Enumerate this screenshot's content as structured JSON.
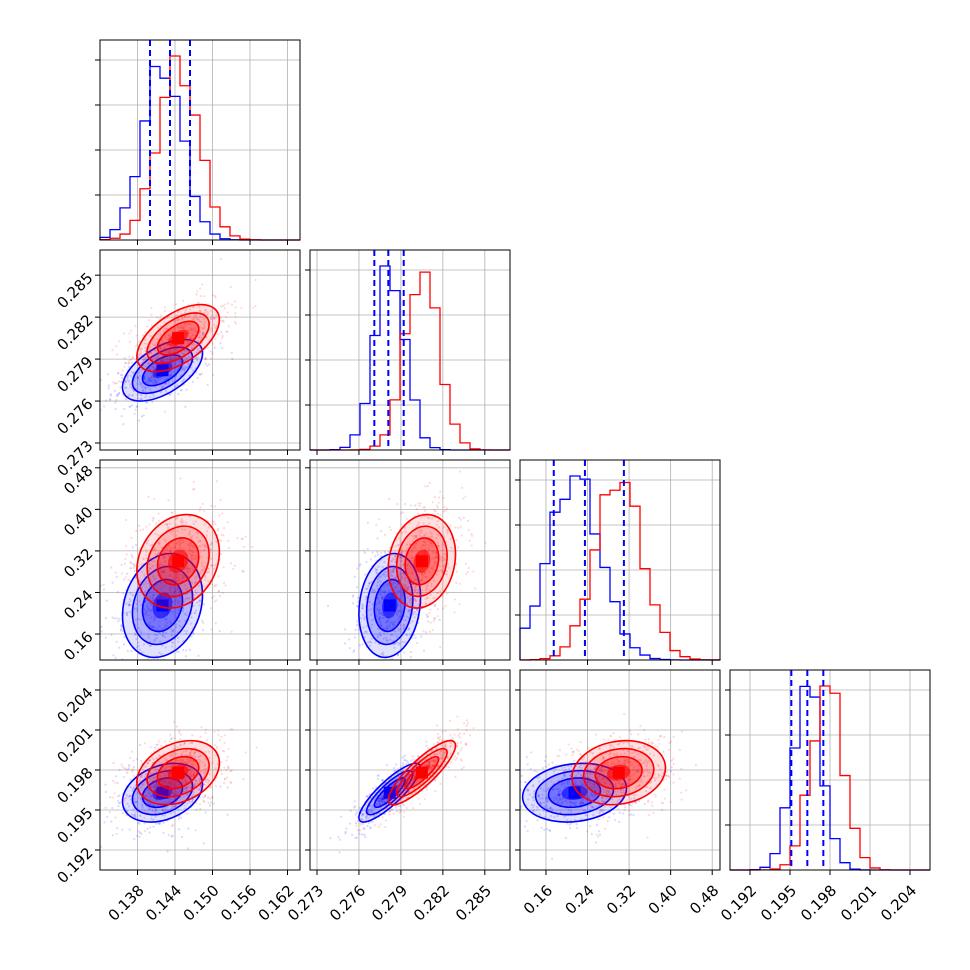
{
  "chart_data": {
    "type": "corner",
    "grid": true,
    "params": [
      {
        "range": [
          0.132,
          0.164
        ],
        "ticks": [
          "0.138",
          "0.144",
          "0.150",
          "0.156",
          "0.162"
        ],
        "tick_values": [
          0.138,
          0.144,
          0.15,
          0.156,
          0.162
        ],
        "blue": {
          "mean": 0.142,
          "sd": 0.0032,
          "quantiles": [
            0.14,
            0.1432,
            0.1464
          ]
        },
        "red": {
          "mean": 0.1445,
          "sd": 0.0033
        }
      },
      {
        "range": [
          0.2725,
          0.2868
        ],
        "ticks": [
          "0.273",
          "0.276",
          "0.279",
          "0.282",
          "0.285"
        ],
        "tick_values": [
          0.273,
          0.276,
          0.279,
          0.282,
          0.285
        ],
        "blue": {
          "mean": 0.2782,
          "sd": 0.0011,
          "quantiles": [
            0.2771,
            0.2781,
            0.2792
          ]
        },
        "red": {
          "mean": 0.2805,
          "sd": 0.0012
        }
      },
      {
        "range": [
          0.11,
          0.495
        ],
        "ticks": [
          "0.16",
          "0.24",
          "0.32",
          "0.40",
          "0.48"
        ],
        "tick_values": [
          0.16,
          0.24,
          0.32,
          0.4,
          0.48
        ],
        "blue": {
          "mean": 0.215,
          "sd": 0.05,
          "quantiles": [
            0.175,
            0.235,
            0.31
          ]
        },
        "red": {
          "mean": 0.3,
          "sd": 0.045
        }
      },
      {
        "range": [
          0.1905,
          0.2055
        ],
        "ticks": [
          "0.192",
          "0.195",
          "0.198",
          "0.201",
          "0.204"
        ],
        "tick_values": [
          0.192,
          0.195,
          0.198,
          0.201,
          0.204
        ],
        "blue": {
          "mean": 0.1963,
          "sd": 0.0011,
          "quantiles": [
            0.1951,
            0.1963,
            0.1975
          ]
        },
        "red": {
          "mean": 0.1978,
          "sd": 0.0012
        }
      }
    ],
    "series": [
      {
        "color": "#0000ff"
      },
      {
        "color": "#ff0000"
      }
    ],
    "quantile_line_color": "#0000ff"
  }
}
